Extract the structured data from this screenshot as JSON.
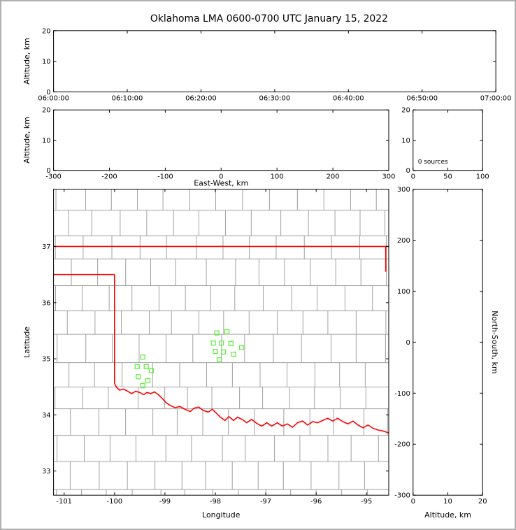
{
  "title": "Oklahoma LMA 0600-0700 UTC January 15, 2022",
  "colors": {
    "figure_border": "#b0b0b0",
    "frame": "#000000",
    "county": "#a0a0a0",
    "state_border": "#ff0000",
    "station": "#66ee44",
    "text": "#000000",
    "background": "#ffffff"
  },
  "chart_data": [
    {
      "type": "scatter",
      "panel": "time-altitude",
      "xlabel": "",
      "ylabel": "Altitude, km",
      "xlim": [
        "06:00:00",
        "07:00:00"
      ],
      "xticks": [
        "06:00:00",
        "06:10:00",
        "06:20:00",
        "06:30:00",
        "06:40:00",
        "06:50:00",
        "07:00:00"
      ],
      "ylim": [
        0,
        20
      ],
      "yticks": [
        0,
        10,
        20
      ],
      "points": []
    },
    {
      "type": "scatter",
      "panel": "eastwest-altitude",
      "xlabel": "East-West, km",
      "ylabel": "Altitude, km",
      "xlim": [
        -300,
        300
      ],
      "xticks": [
        -300,
        -200,
        -100,
        0,
        100,
        200,
        300
      ],
      "ylim": [
        0,
        20
      ],
      "yticks": [
        0,
        10,
        20
      ],
      "points": []
    },
    {
      "type": "histogram",
      "panel": "altitude-source-histogram",
      "annotation": "0 sources",
      "xlabel": "",
      "ylabel": "",
      "xlim": [
        0,
        100
      ],
      "xticks": [
        0,
        50,
        100
      ],
      "ylim": [
        0,
        20
      ],
      "yticks": [
        0,
        10,
        20
      ],
      "points": []
    },
    {
      "type": "map-scatter",
      "panel": "plan-view",
      "xlabel": "Longitude",
      "ylabel": "Latitude",
      "xlim": [
        -101.21,
        -94.56
      ],
      "xticks": [
        -101,
        -100,
        -99,
        -98,
        -97,
        -96,
        -95
      ],
      "ylim": [
        32.57,
        38.02
      ],
      "yticks": [
        33,
        34,
        35,
        36,
        37
      ],
      "stations": [
        [
          -99.44,
          35.03
        ],
        [
          -99.55,
          34.86
        ],
        [
          -99.37,
          34.86
        ],
        [
          -99.27,
          34.79
        ],
        [
          -99.53,
          34.68
        ],
        [
          -99.34,
          34.61
        ],
        [
          -99.44,
          34.52
        ],
        [
          -97.97,
          35.46
        ],
        [
          -97.77,
          35.48
        ],
        [
          -98.04,
          35.28
        ],
        [
          -97.88,
          35.28
        ],
        [
          -97.69,
          35.27
        ],
        [
          -97.48,
          35.2
        ],
        [
          -98.0,
          35.13
        ],
        [
          -97.84,
          35.12
        ],
        [
          -97.64,
          35.08
        ],
        [
          -97.92,
          34.98
        ]
      ],
      "state_border": [
        {
          "name": "kansas-border",
          "points": [
            [
              -101.21,
              37.0
            ],
            [
              -94.56,
              37.0
            ]
          ]
        },
        {
          "name": "panhandle-south-border",
          "points": [
            [
              -101.21,
              36.5
            ],
            [
              -100.0,
              36.5
            ]
          ]
        },
        {
          "name": "west-border",
          "points": [
            [
              -100.0,
              36.5
            ],
            [
              -100.0,
              34.56
            ]
          ]
        },
        {
          "name": "east-border-sliver",
          "points": [
            [
              -94.62,
              37.0
            ],
            [
              -94.62,
              36.55
            ]
          ]
        },
        {
          "name": "red-river-border",
          "points": [
            [
              -100.0,
              34.56
            ],
            [
              -99.96,
              34.49
            ],
            [
              -99.9,
              34.44
            ],
            [
              -99.82,
              34.46
            ],
            [
              -99.74,
              34.42
            ],
            [
              -99.66,
              34.38
            ],
            [
              -99.58,
              34.42
            ],
            [
              -99.5,
              34.4
            ],
            [
              -99.42,
              34.36
            ],
            [
              -99.36,
              34.4
            ],
            [
              -99.28,
              34.38
            ],
            [
              -99.21,
              34.41
            ],
            [
              -99.13,
              34.36
            ],
            [
              -99.06,
              34.3
            ],
            [
              -98.98,
              34.22
            ],
            [
              -98.9,
              34.17
            ],
            [
              -98.8,
              34.13
            ],
            [
              -98.7,
              34.15
            ],
            [
              -98.6,
              34.1
            ],
            [
              -98.5,
              34.06
            ],
            [
              -98.42,
              34.12
            ],
            [
              -98.33,
              34.14
            ],
            [
              -98.24,
              34.08
            ],
            [
              -98.14,
              34.05
            ],
            [
              -98.06,
              34.1
            ],
            [
              -97.98,
              34.03
            ],
            [
              -97.9,
              33.96
            ],
            [
              -97.81,
              33.9
            ],
            [
              -97.73,
              33.97
            ],
            [
              -97.64,
              33.9
            ],
            [
              -97.56,
              33.96
            ],
            [
              -97.47,
              33.92
            ],
            [
              -97.38,
              33.86
            ],
            [
              -97.28,
              33.92
            ],
            [
              -97.18,
              33.85
            ],
            [
              -97.08,
              33.8
            ],
            [
              -96.98,
              33.86
            ],
            [
              -96.88,
              33.8
            ],
            [
              -96.77,
              33.86
            ],
            [
              -96.67,
              33.8
            ],
            [
              -96.57,
              33.84
            ],
            [
              -96.47,
              33.78
            ],
            [
              -96.37,
              33.86
            ],
            [
              -96.27,
              33.89
            ],
            [
              -96.17,
              33.82
            ],
            [
              -96.07,
              33.88
            ],
            [
              -95.97,
              33.86
            ],
            [
              -95.87,
              33.9
            ],
            [
              -95.77,
              33.94
            ],
            [
              -95.67,
              33.89
            ],
            [
              -95.57,
              33.94
            ],
            [
              -95.47,
              33.88
            ],
            [
              -95.37,
              33.84
            ],
            [
              -95.27,
              33.89
            ],
            [
              -95.17,
              33.82
            ],
            [
              -95.07,
              33.77
            ],
            [
              -94.97,
              33.82
            ],
            [
              -94.87,
              33.76
            ],
            [
              -94.77,
              33.73
            ],
            [
              -94.66,
              33.71
            ],
            [
              -94.56,
              33.68
            ]
          ]
        }
      ]
    },
    {
      "type": "scatter",
      "panel": "altitude-northsouth",
      "xlabel": "Altitude, km",
      "ylabel": "North-South, km",
      "xlim": [
        0,
        20
      ],
      "xticks": [
        0,
        10,
        20
      ],
      "ylim": [
        -300,
        300
      ],
      "yticks": [
        -300,
        -200,
        -100,
        0,
        100,
        200,
        300
      ],
      "points": []
    }
  ]
}
